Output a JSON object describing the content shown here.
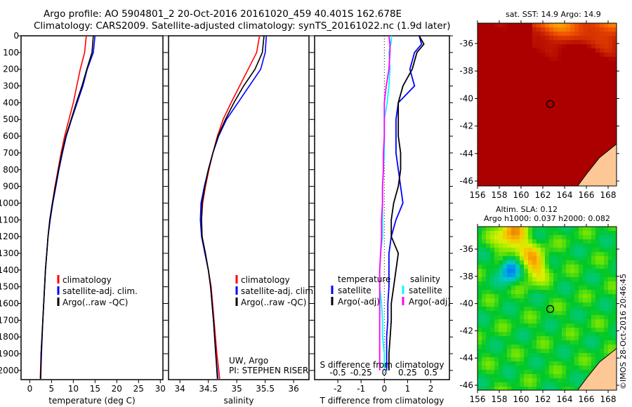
{
  "title": {
    "line1": "Argo profile: AO 5904801_2 20-Oct-2016 20161020_459 40.401S 162.678E",
    "line2": "Climatology: CARS2009. Satellite-adjusted climatology: synTS_20161022.nc (1.9d later)"
  },
  "colors": {
    "climatology": "#ff0000",
    "satellite": "#0000ff",
    "argo": "#000000",
    "sat_s": "#00ffff",
    "argo_s": "#ff00ff"
  },
  "chart_data": [
    {
      "type": "line",
      "xlabel": "temperature (deg C)",
      "ylabel": "",
      "xlim": [
        -2,
        30.6
      ],
      "ylim": [
        2055,
        0
      ],
      "xticks": [
        "0",
        "5",
        "10",
        "15",
        "20",
        "25",
        "30"
      ],
      "xtick_values": [
        0,
        5,
        10,
        15,
        20,
        25,
        30
      ],
      "yticks": [
        "0",
        "100",
        "200",
        "300",
        "400",
        "500",
        "600",
        "700",
        "800",
        "900",
        "1000",
        "1100",
        "1200",
        "1300",
        "1400",
        "1500",
        "1600",
        "1700",
        "1800",
        "1900",
        "2000"
      ],
      "legend": [
        "climatology",
        "satellite-adj. clim.",
        "Argo(..raw -QC)"
      ],
      "depth": [
        0,
        100,
        200,
        300,
        400,
        500,
        600,
        700,
        800,
        900,
        1000,
        1100,
        1200,
        1300,
        1400,
        1500,
        1700,
        1900,
        2050
      ],
      "series": [
        {
          "name": "climatology",
          "color": "#ff0000",
          "values": [
            13,
            12.6,
            11.6,
            10.8,
            10,
            9,
            8,
            7.2,
            6.5,
            5.8,
            5.2,
            4.6,
            4.2,
            3.9,
            3.6,
            3.4,
            3,
            2.6,
            2.4
          ]
        },
        {
          "name": "satellite-adj. clim.",
          "color": "#0000ff",
          "values": [
            15,
            14.6,
            13.2,
            12.2,
            10.9,
            9.6,
            8.4,
            7.5,
            6.7,
            6,
            5.3,
            4.7,
            4.2,
            3.9,
            3.6,
            3.4,
            3,
            2.7,
            2.5
          ]
        },
        {
          "name": "Argo(..raw -QC)",
          "color": "#000000",
          "values": [
            14.6,
            14.3,
            13.1,
            12,
            10.7,
            9.5,
            8.3,
            7.4,
            6.6,
            5.9,
            5.2,
            4.6,
            4.2,
            3.9,
            3.6,
            3.4,
            3,
            2.6,
            2.5
          ]
        }
      ]
    },
    {
      "type": "line",
      "xlabel": "salinity",
      "xlim": [
        33.8,
        36.27
      ],
      "ylim": [
        2055,
        0
      ],
      "xticks": [
        "34",
        "34.5",
        "35",
        "35.5",
        "36"
      ],
      "xtick_values": [
        34,
        34.5,
        35,
        35.5,
        36
      ],
      "legend": [
        "climatology",
        "satellite-adj. clim.",
        "Argo(..raw -QC)"
      ],
      "annotation": [
        "UW, Argo",
        "PI: STEPHEN RISER"
      ],
      "depth": [
        0,
        100,
        200,
        300,
        400,
        500,
        600,
        700,
        800,
        900,
        1000,
        1100,
        1200,
        1300,
        1400,
        1500,
        1700,
        1900,
        2050
      ],
      "series": [
        {
          "name": "climatology",
          "color": "#ff0000",
          "values": [
            35.4,
            35.35,
            35.2,
            35.05,
            34.9,
            34.76,
            34.66,
            34.58,
            34.51,
            34.45,
            34.4,
            34.38,
            34.39,
            34.44,
            34.5,
            34.55,
            34.6,
            34.65,
            34.7
          ]
        },
        {
          "name": "satellite-adj. clim.",
          "color": "#0000ff",
          "values": [
            35.52,
            35.5,
            35.42,
            35.22,
            35.02,
            34.82,
            34.68,
            34.58,
            34.5,
            34.43,
            34.37,
            34.36,
            34.38,
            34.44,
            34.5,
            34.54,
            34.59,
            34.63,
            34.67
          ]
        },
        {
          "name": "Argo(..raw -QC)",
          "color": "#000000",
          "values": [
            35.48,
            35.45,
            35.32,
            35.12,
            34.95,
            34.8,
            34.67,
            34.58,
            34.5,
            34.44,
            34.39,
            34.38,
            34.39,
            34.45,
            34.5,
            34.54,
            34.59,
            34.63,
            34.66
          ]
        }
      ]
    },
    {
      "type": "line",
      "xlabel": "T difference from climatology",
      "xlabel2": "S difference from climatology",
      "xlim": [
        -3,
        2.8
      ],
      "ylim": [
        2055,
        0
      ],
      "xticks": [
        "-2",
        "-1",
        "0",
        "1",
        "2"
      ],
      "xtick_values": [
        -2,
        -1,
        0,
        1,
        2
      ],
      "xticks2": [
        "-0.5",
        "-0.25",
        "0",
        "0.25",
        "0.5"
      ],
      "xtick2_values": [
        -0.5,
        -0.25,
        0,
        0.25,
        0.5
      ],
      "legend_t_title": "temperature",
      "legend_s_title": "salinity",
      "legend": [
        "satellite",
        "Argo(-adj)",
        "satellite",
        "Argo(-adj)"
      ],
      "depth": [
        0,
        50,
        100,
        200,
        300,
        400,
        500,
        600,
        700,
        800,
        900,
        1000,
        1100,
        1200,
        1300,
        1400,
        1500,
        1600,
        1700,
        1800,
        1900,
        2000
      ],
      "series": [
        {
          "name": "T satellite",
          "var": "T",
          "color": "#0000ff",
          "values": [
            1.5,
            1.6,
            1.3,
            1.1,
            1.3,
            0.6,
            0.5,
            0.5,
            0.5,
            0.6,
            0.7,
            0.8,
            0.5,
            0.3,
            0.2,
            0.2,
            0.2,
            0.15,
            0.15,
            0.1,
            0.1,
            0.1
          ]
        },
        {
          "name": "T Argo(-adj)",
          "var": "T",
          "color": "#000000",
          "values": [
            1.5,
            1.7,
            1.4,
            1.2,
            0.8,
            0.6,
            0.6,
            0.6,
            0.7,
            0.7,
            0.6,
            0.4,
            0.3,
            0.3,
            0.6,
            0.5,
            0.4,
            0.3,
            0.3,
            0.25,
            0.2,
            0.2
          ]
        },
        {
          "name": "S satellite",
          "var": "S",
          "color": "#00ffff",
          "values": [
            0.08,
            0.07,
            0.05,
            0.06,
            0.05,
            0.03,
            0.0,
            0.0,
            0.0,
            -0.01,
            -0.02,
            -0.02,
            -0.02,
            -0.02,
            -0.04,
            -0.05,
            -0.05,
            -0.03,
            -0.02,
            -0.02,
            0.0,
            0.0
          ]
        },
        {
          "name": "S Argo(-adj)",
          "var": "S",
          "color": "#ff00ff",
          "values": [
            0.05,
            0.06,
            0.06,
            0.05,
            0.02,
            0.0,
            0.0,
            0.0,
            -0.01,
            -0.01,
            -0.02,
            -0.02,
            -0.03,
            -0.03,
            -0.04,
            -0.05,
            -0.05,
            -0.05,
            -0.05,
            -0.05,
            -0.05,
            -0.05
          ]
        }
      ]
    }
  ],
  "maps": [
    {
      "title": "sat. SST: 14.9 Argo: 14.9",
      "lon_ticks": [
        "156",
        "158",
        "160",
        "162",
        "164",
        "166",
        "168"
      ],
      "lat_ticks": [
        "-36",
        "-38",
        "-40",
        "-42",
        "-44",
        "-46"
      ],
      "float_lon": 162.678,
      "float_lat": -40.401
    },
    {
      "title1": "Altim. SLA: 0.12",
      "title2": "Argo h1000: 0.037 h2000: 0.082",
      "lon_ticks": [
        "156",
        "158",
        "160",
        "162",
        "164",
        "166",
        "168"
      ],
      "lat_ticks": [
        "-36",
        "-38",
        "-40",
        "-42",
        "-44",
        "-46"
      ],
      "float_lon": 162.678,
      "float_lat": -40.401
    }
  ],
  "credit": "©IMOS 28-Oct-2016 20:46:45"
}
